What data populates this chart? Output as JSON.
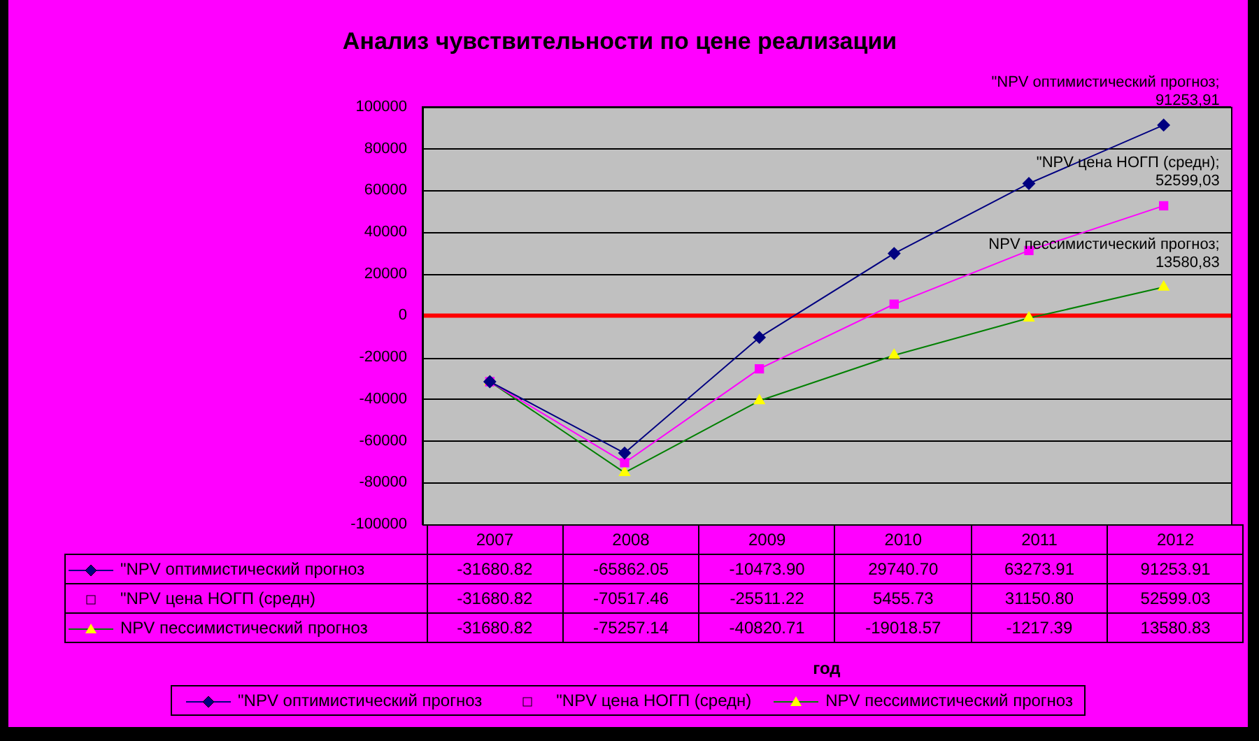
{
  "chart_data": {
    "type": "line",
    "title": "Анализ чувствительности по цене реализации",
    "categories": [
      "2007",
      "2008",
      "2009",
      "2010",
      "2011",
      "2012"
    ],
    "series": [
      {
        "name": "\"NPV оптимистический прогноз",
        "color": "#000080",
        "marker": "diamond",
        "values": [
          -31680.82,
          -65862.05,
          -10473.9,
          29740.7,
          63273.91,
          91253.91
        ],
        "value_labels": [
          "-31680.82",
          "-65862.05",
          "-10473.90",
          "29740.70",
          "63273.91",
          "91253.91"
        ]
      },
      {
        "name": "\"NPV цена НОГП (средн)",
        "color": "#ff00ff",
        "marker": "square",
        "values": [
          -31680.82,
          -70517.46,
          -25511.22,
          5455.73,
          31150.8,
          52599.03
        ],
        "value_labels": [
          "-31680.82",
          "-70517.46",
          "-25511.22",
          "5455.73",
          "31150.80",
          "52599.03"
        ]
      },
      {
        "name": "NPV пессимистический прогноз",
        "color": "#008000",
        "marker": "triangle",
        "values": [
          -31680.82,
          -75257.14,
          -40820.71,
          -19018.57,
          -1217.39,
          13580.83
        ],
        "value_labels": [
          "-31680.82",
          "-75257.14",
          "-40820.71",
          "-19018.57",
          "-1217.39",
          "13580.83"
        ]
      }
    ],
    "ylim": [
      -100000,
      100000
    ],
    "yticks": [
      -100000,
      -80000,
      -60000,
      -40000,
      -20000,
      0,
      20000,
      40000,
      60000,
      80000,
      100000
    ],
    "grid": "y",
    "legend": "bottom",
    "data_labels": true,
    "ref_lines": [
      {
        "axis": "y",
        "value": 0,
        "color": "#ff0000"
      }
    ],
    "annotations": [
      {
        "text": "\"NPV оптимистический прогноз; 91253,91",
        "x": "2012",
        "y": 91253.91
      },
      "\"NPV цена НОГП (средн); 52599,03",
      "NPV пессимистический прогноз; 13580,83",
      "год"
    ]
  }
}
